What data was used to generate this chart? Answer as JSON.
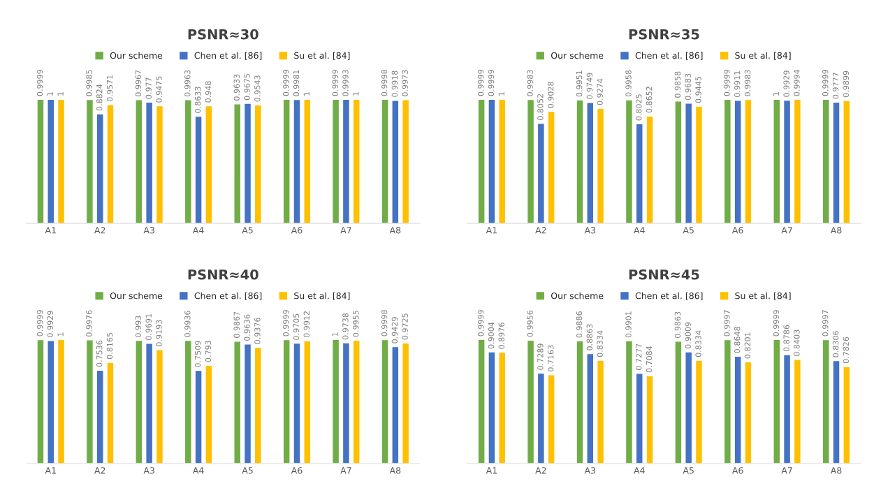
{
  "chart_data": [
    {
      "type": "bar",
      "title": "PSNR≈30",
      "categories": [
        "A1",
        "A2",
        "A3",
        "A4",
        "A5",
        "A6",
        "A7",
        "A8"
      ],
      "data_labels": true,
      "legend": "top",
      "grid": false,
      "series": [
        {
          "name": "Our scheme",
          "color": "#70ad47",
          "values": [
            0.9999,
            0.9985,
            0.9967,
            0.9963,
            0.9633,
            0.9999,
            0.9999,
            0.9998
          ]
        },
        {
          "name": "Chen et al. [86]",
          "color": "#4472c4",
          "values": [
            1,
            0.8824,
            0.977,
            0.8633,
            0.9675,
            0.9981,
            0.9993,
            0.9918
          ]
        },
        {
          "name": "Su et al. [84]",
          "color": "#ffc000",
          "values": [
            1,
            0.9571,
            0.9475,
            0.948,
            0.9543,
            1,
            1,
            0.9973
          ]
        }
      ]
    },
    {
      "type": "bar",
      "title": "PSNR≈35",
      "categories": [
        "A1",
        "A2",
        "A3",
        "A4",
        "A5",
        "A6",
        "A7",
        "A8"
      ],
      "data_labels": true,
      "legend": "top",
      "grid": false,
      "series": [
        {
          "name": "Our scheme",
          "color": "#70ad47",
          "values": [
            0.9999,
            0.9983,
            0.9951,
            0.9958,
            0.9858,
            0.9999,
            1,
            0.9999
          ]
        },
        {
          "name": "Chen et al. [86]",
          "color": "#4472c4",
          "values": [
            0.9999,
            0.8052,
            0.9749,
            0.8025,
            0.9683,
            0.9911,
            0.9929,
            0.9777
          ]
        },
        {
          "name": "Su et al. [84]",
          "color": "#ffc000",
          "values": [
            1,
            0.9028,
            0.9274,
            0.8652,
            0.9445,
            0.9983,
            0.9994,
            0.9899
          ]
        }
      ]
    },
    {
      "type": "bar",
      "title": "PSNR≈40",
      "categories": [
        "A1",
        "A2",
        "A3",
        "A4",
        "A5",
        "A6",
        "A7",
        "A8"
      ],
      "data_labels": true,
      "legend": "top",
      "grid": false,
      "series": [
        {
          "name": "Our scheme",
          "color": "#70ad47",
          "values": [
            0.9999,
            0.9976,
            0.993,
            0.9936,
            0.9867,
            0.9999,
            1,
            0.9998
          ]
        },
        {
          "name": "Chen et al. [86]",
          "color": "#4472c4",
          "values": [
            0.9929,
            0.7536,
            0.9691,
            0.7509,
            0.9636,
            0.9705,
            0.9738,
            0.9429
          ]
        },
        {
          "name": "Su et al. [84]",
          "color": "#ffc000",
          "values": [
            1,
            0.8165,
            0.9193,
            0.793,
            0.9376,
            0.9912,
            0.9955,
            0.9725
          ]
        }
      ]
    },
    {
      "type": "bar",
      "title": "PSNR≈45",
      "categories": [
        "A1",
        "A2",
        "A3",
        "A4",
        "A5",
        "A6",
        "A7",
        "A8"
      ],
      "data_labels": true,
      "legend": "top",
      "grid": false,
      "series": [
        {
          "name": "Our scheme",
          "color": "#70ad47",
          "values": [
            0.9999,
            0.9956,
            0.9886,
            0.9901,
            0.9863,
            0.9997,
            0.9999,
            0.9997
          ]
        },
        {
          "name": "Chen et al. [86]",
          "color": "#4472c4",
          "values": [
            0.9004,
            0.7289,
            0.8863,
            0.7277,
            0.9009,
            0.8648,
            0.8786,
            0.8306
          ]
        },
        {
          "name": "Su et al. [84]",
          "color": "#ffc000",
          "values": [
            0.8976,
            0.7163,
            0.8334,
            0.7084,
            0.8334,
            0.8201,
            0.8403,
            0.7826
          ]
        }
      ]
    }
  ]
}
